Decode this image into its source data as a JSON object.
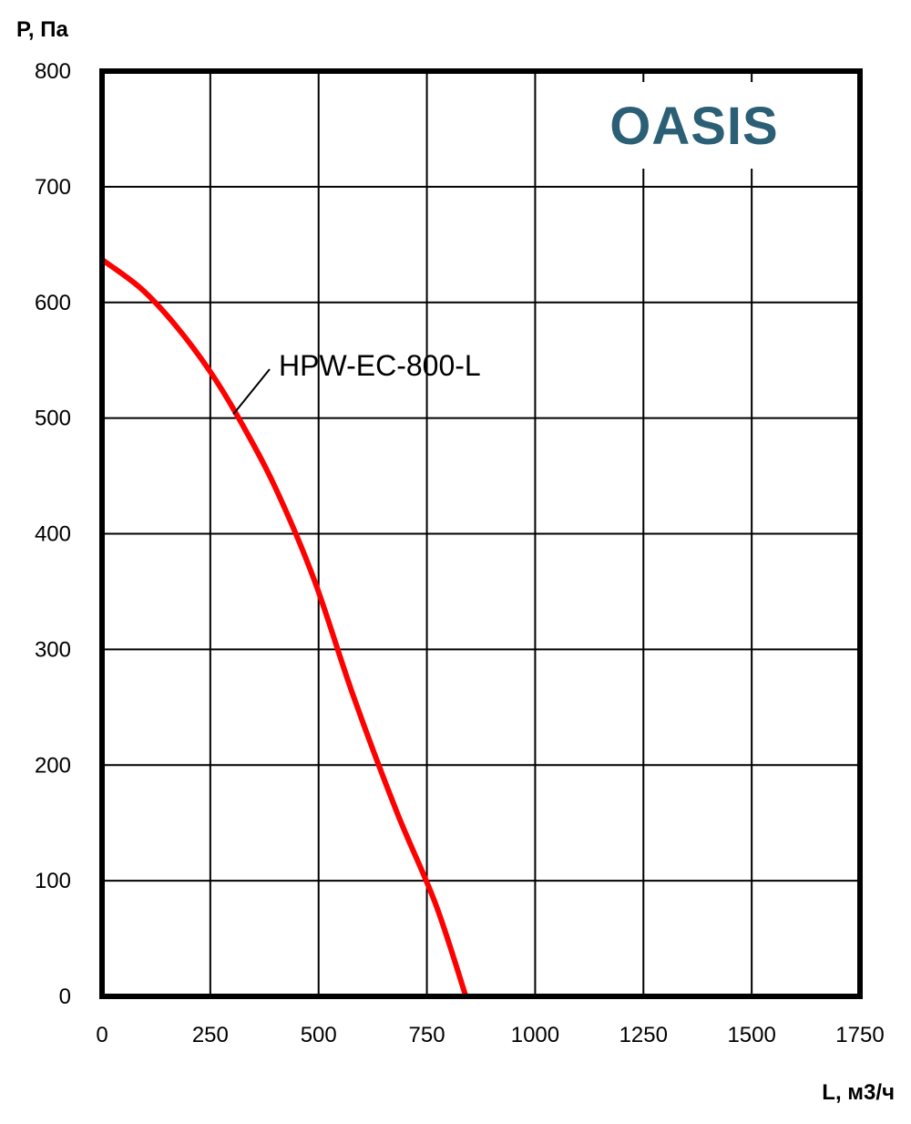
{
  "brand": {
    "text": "OASIS",
    "color": "#2b5f75"
  },
  "chart_data": {
    "type": "line",
    "xlabel": "L, м3/ч",
    "ylabel": "P, Па",
    "xlim": [
      0,
      1750
    ],
    "ylim": [
      0,
      800
    ],
    "xticks": [
      0,
      250,
      500,
      750,
      1000,
      1250,
      1500,
      1750
    ],
    "yticks": [
      0,
      100,
      200,
      300,
      400,
      500,
      600,
      700,
      800
    ],
    "grid": true,
    "series": [
      {
        "name": "HPW-EC-800-L",
        "color": "#ff0000",
        "x": [
          0,
          90,
          170,
          250,
          320,
          400,
          490,
          580,
          680,
          770,
          840
        ],
        "y": [
          637,
          612,
          580,
          540,
          497,
          440,
          360,
          260,
          160,
          80,
          0
        ]
      }
    ]
  }
}
